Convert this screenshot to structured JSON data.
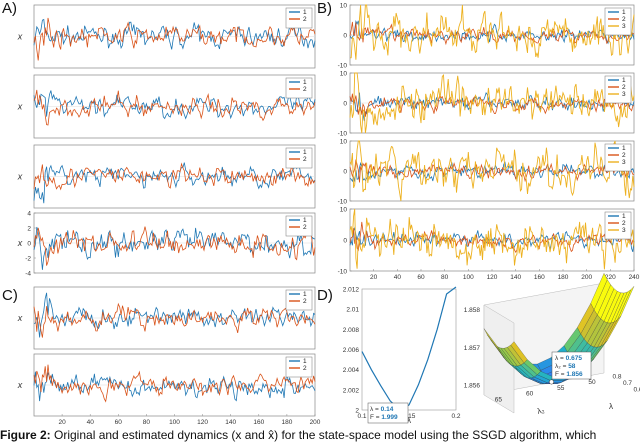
{
  "caption": {
    "label": "Figure 2:",
    "text": "Original and estimated dynamics (x and x̂) for the state-space model using the SSGD algorithm, which"
  },
  "colors": {
    "s1": "#1f77b4",
    "s2": "#d95319",
    "s3": "#edb120",
    "surface_low": "#3e26a8",
    "surface_high": "#f9fb0e"
  },
  "panels": [
    {
      "letter": "A)"
    },
    {
      "letter": "B)"
    },
    {
      "letter": "C)"
    },
    {
      "letter": "D)"
    }
  ],
  "chart_data": [
    {
      "type": "line",
      "panel": "A",
      "ylabel": "x",
      "ylim": [
        -5,
        5
      ],
      "xlim": [
        0,
        200
      ],
      "legend": [
        "1",
        "2"
      ],
      "legend_position": "top-right",
      "x_ticklabels": []
    },
    {
      "type": "line",
      "panel": "A",
      "ylabel": "x",
      "ylim": [
        -5,
        5
      ],
      "xlim": [
        0,
        200
      ],
      "legend": [
        "1",
        "2"
      ],
      "legend_position": "top-right",
      "x_ticklabels": []
    },
    {
      "type": "line",
      "panel": "A",
      "ylabel": "x",
      "ylim": [
        -5,
        5
      ],
      "xlim": [
        0,
        200
      ],
      "legend": [
        "1",
        "2"
      ],
      "legend_position": "top-right",
      "x_ticklabels": []
    },
    {
      "type": "line",
      "panel": "A",
      "ylabel": "x",
      "ylim": [
        -4,
        4
      ],
      "yticks": [
        "4",
        "2",
        "0",
        "-2",
        "-4"
      ],
      "xlim": [
        0,
        200
      ],
      "legend": [
        "1",
        "2"
      ],
      "legend_position": "top-right",
      "x_ticklabels": []
    },
    {
      "type": "line",
      "panel": "B",
      "ylabel": "",
      "ylim": [
        -10,
        10
      ],
      "yticks": [
        "10",
        "0",
        "-10"
      ],
      "xlim": [
        0,
        240
      ],
      "legend": [
        "1",
        "2",
        "3"
      ],
      "legend_position": "top-right",
      "x_ticklabels": []
    },
    {
      "type": "line",
      "panel": "B",
      "ylabel": "",
      "ylim": [
        -10,
        10
      ],
      "yticks": [
        "10",
        "0",
        "-10"
      ],
      "xlim": [
        0,
        240
      ],
      "legend": [
        "1",
        "2",
        "3"
      ],
      "legend_position": "top-right",
      "x_ticklabels": []
    },
    {
      "type": "line",
      "panel": "B",
      "ylabel": "",
      "ylim": [
        -10,
        10
      ],
      "yticks": [
        "10",
        "0",
        "-10"
      ],
      "xlim": [
        0,
        240
      ],
      "legend": [
        "1",
        "2",
        "3"
      ],
      "legend_position": "top-right",
      "x_ticklabels": []
    },
    {
      "type": "line",
      "panel": "B",
      "ylabel": "",
      "ylim": [
        -10,
        10
      ],
      "yticks": [
        "10",
        "0",
        "-10"
      ],
      "xlim": [
        0,
        240
      ],
      "legend": [
        "1",
        "2",
        "3"
      ],
      "legend_position": "top-right",
      "x_ticklabels": [
        "20",
        "40",
        "60",
        "80",
        "100",
        "120",
        "140",
        "160",
        "180",
        "200",
        "220",
        "240"
      ]
    },
    {
      "type": "line",
      "panel": "C",
      "ylabel": "x",
      "ylim": [
        -5,
        5
      ],
      "xlim": [
        0,
        200
      ],
      "legend": [
        "1",
        "2"
      ],
      "legend_position": "top-right",
      "x_ticklabels": []
    },
    {
      "type": "line",
      "panel": "C",
      "ylabel": "x",
      "ylim": [
        -5,
        5
      ],
      "xlim": [
        0,
        200
      ],
      "legend": [
        "1",
        "2"
      ],
      "legend_position": "top-right",
      "x_ticklabels": [
        "20",
        "40",
        "60",
        "80",
        "100",
        "120",
        "140",
        "160",
        "180",
        "200"
      ]
    },
    {
      "type": "line",
      "panel": "D",
      "xlabel": "λ",
      "xlim": [
        0.1,
        0.2
      ],
      "ylim": [
        2.0,
        2.012
      ],
      "yticks": [
        "2.012",
        "2.01",
        "2.008",
        "2.006",
        "2.004",
        "2.002",
        "2"
      ],
      "xticks": [
        "0.1",
        "0.15",
        "0.2"
      ],
      "x": [
        0.1,
        0.11,
        0.12,
        0.13,
        0.14,
        0.15,
        0.16,
        0.17,
        0.18,
        0.19,
        0.2
      ],
      "y": [
        2.0058,
        2.004,
        2.0024,
        2.0009,
        1.999,
        2.0005,
        2.0025,
        2.005,
        2.008,
        2.0115,
        2.0122
      ],
      "annotation": {
        "lambda_label": "λ = ",
        "lambda": "0.14",
        "f_label": "F = ",
        "f": "1.999"
      }
    },
    {
      "type": "surface",
      "panel": "D",
      "xlabel": "λ₂",
      "ylabel": "λ",
      "zticks": [
        "1.858",
        "1.857",
        "1.856"
      ],
      "xticks": [
        "65",
        "60",
        "55",
        "50"
      ],
      "yticks": [
        "0.8",
        "0.7",
        "0.6"
      ],
      "annotation": {
        "lambda_label": "λ = ",
        "lambda": "0.675",
        "lambda2_label": "λ₂ = ",
        "lambda2": "58",
        "f_label": "F = ",
        "f": "1.856"
      }
    }
  ]
}
